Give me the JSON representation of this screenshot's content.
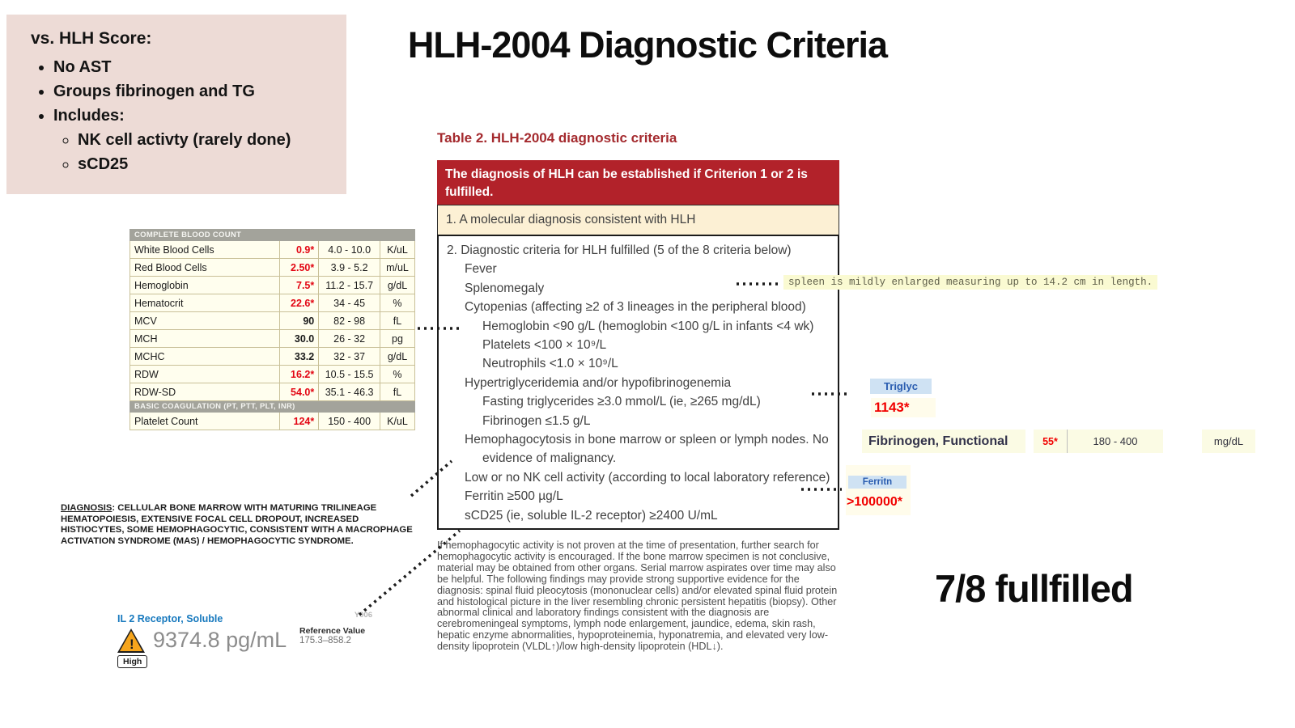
{
  "pink_note": {
    "title": "vs. HLH Score:",
    "bullets": [
      "No AST",
      "Groups fibrinogen and TG",
      "Includes:"
    ],
    "sub_bullets": [
      "NK cell activty (rarely done)",
      "sCD25"
    ]
  },
  "main_title": "HLH-2004 Diagnostic Criteria",
  "cbc_table": {
    "rows": [
      {
        "section": "COMPLETE BLOOD COUNT"
      },
      {
        "name": "White Blood Cells",
        "value": "0.9*",
        "abnormal": true,
        "range": "4.0 - 10.0",
        "unit": "K/uL"
      },
      {
        "name": "Red Blood Cells",
        "value": "2.50*",
        "abnormal": true,
        "range": "3.9 - 5.2",
        "unit": "m/uL"
      },
      {
        "name": "Hemoglobin",
        "value": "7.5*",
        "abnormal": true,
        "range": "11.2 - 15.7",
        "unit": "g/dL"
      },
      {
        "name": "Hematocrit",
        "value": "22.6*",
        "abnormal": true,
        "range": "34 - 45",
        "unit": "%"
      },
      {
        "name": "MCV",
        "value": "90",
        "abnormal": false,
        "range": "82 - 98",
        "unit": "fL"
      },
      {
        "name": "MCH",
        "value": "30.0",
        "abnormal": false,
        "range": "26 - 32",
        "unit": "pg"
      },
      {
        "name": "MCHC",
        "value": "33.2",
        "abnormal": false,
        "range": "32 - 37",
        "unit": "g/dL"
      },
      {
        "name": "RDW",
        "value": "16.2*",
        "abnormal": true,
        "range": "10.5 - 15.5",
        "unit": "%"
      },
      {
        "name": "RDW-SD",
        "value": "54.0*",
        "abnormal": true,
        "range": "35.1 - 46.3",
        "unit": "fL"
      },
      {
        "section": "BASIC COAGULATION (PT, PTT, PLT, INR)"
      },
      {
        "name": "Platelet Count",
        "value": "124*",
        "abnormal": true,
        "range": "150 - 400",
        "unit": "K/uL"
      }
    ]
  },
  "criteria_table": {
    "caption": "Table 2. HLH-2004 diagnostic criteria",
    "header": "The diagnosis of HLH can be established if Criterion 1 or 2 is fulfilled.",
    "criterion1": "1. A molecular diagnosis consistent with HLH",
    "items": [
      {
        "indent": 0,
        "text": "2. Diagnostic criteria for HLH fulfilled (5 of the 8 criteria below)"
      },
      {
        "indent": 1,
        "text": "Fever"
      },
      {
        "indent": 1,
        "text": "Splenomegaly"
      },
      {
        "indent": 1,
        "text": "Cytopenias (affecting ≥2 of 3 lineages in the peripheral blood)"
      },
      {
        "indent": 2,
        "text": "Hemoglobin <90 g/L (hemoglobin <100 g/L in infants <4 wk)"
      },
      {
        "indent": 2,
        "text": "Platelets <100 × 10⁹/L"
      },
      {
        "indent": 2,
        "text": "Neutrophils <1.0 × 10⁹/L"
      },
      {
        "indent": 1,
        "text": "Hypertriglyceridemia and/or hypofibrinogenemia"
      },
      {
        "indent": 2,
        "text": "Fasting triglycerides ≥3.0 mmol/L (ie, ≥265 mg/dL)"
      },
      {
        "indent": 2,
        "text": "Fibrinogen ≤1.5 g/L"
      },
      {
        "indent": 1,
        "wrap": true,
        "text": "Hemophagocytosis in bone marrow or spleen or lymph nodes. No evidence of malignancy."
      },
      {
        "indent": 1,
        "text": "Low or no NK cell activity (according to local laboratory reference)"
      },
      {
        "indent": 1,
        "text": "Ferritin ≥500 µg/L"
      },
      {
        "indent": 1,
        "text": "sCD25 (ie, soluble IL-2 receptor) ≥2400 U/mL"
      }
    ],
    "footnote": "If hemophagocytic activity is not proven at the time of presentation, further search for hemophagocytic activity is encouraged. If the bone marrow specimen is not conclusive, material may be obtained from other organs. Serial marrow aspirates over time may also be helpful. The following findings may provide strong supportive evidence for the diagnosis: spinal fluid pleocytosis (mononuclear cells) and/or elevated spinal fluid protein and histological picture in the liver resembling chronic persistent hepatitis (biopsy). Other abnormal clinical and laboratory findings consistent with the diagnosis are cerebromeningeal symptoms, lymph node enlargement, jaundice, edema, skin rash, hepatic enzyme abnormalities, hypoproteinemia, hyponatremia, and elevated very low-density lipoprotein (VLDL↑)/low high-density lipoprotein (HDL↓)."
  },
  "annotations": {
    "spleen_note": "spleen is mildly enlarged measuring up to 14.2 cm in length.",
    "triglycerides": {
      "label": "Triglyc",
      "value": "1143*"
    },
    "fibrinogen": {
      "label": "Fibrinogen, Functional",
      "value": "55*",
      "range": "180 - 400",
      "unit": "mg/dL"
    },
    "ferritin": {
      "label": "Ferritn",
      "value": ">100000*"
    }
  },
  "diagnosis": {
    "label": "DIAGNOSIS",
    "text": ":  CELLULAR BONE MARROW WITH MATURING TRILINEAGE HEMATOPOIESIS, EXTENSIVE FOCAL CELL DROPOUT, INCREASED HISTIOCYTES, SOME HEMOPHAGOCYTIC, CONSISTENT WITH A MACROPHAGE ACTIVATION SYNDROME (MAS) / HEMOPHAGOCYTIC SYNDROME."
  },
  "il2_result": {
    "label": "IL 2 Receptor, Soluble",
    "value": "9374.8 pg/mL",
    "flag": "High",
    "warning_glyph": "!",
    "code": "Y006",
    "reference_label": "Reference Value",
    "reference_value": "175.3–858.2"
  },
  "conclusion": "7/8 fullfilled",
  "colors": {
    "pink_box_bg": "#eddbd6",
    "table_header_red": "#b2222a",
    "caption_red": "#a42a2e",
    "cream_row": "#fcf0d4",
    "abnormal_red": "#e30613",
    "annotation_red": "#f10000",
    "chip_blue_bg": "#cfe2f3",
    "chip_blue_text": "#2a5db0",
    "lab_yellow": "#fffeee",
    "il2_blue": "#1779be"
  }
}
